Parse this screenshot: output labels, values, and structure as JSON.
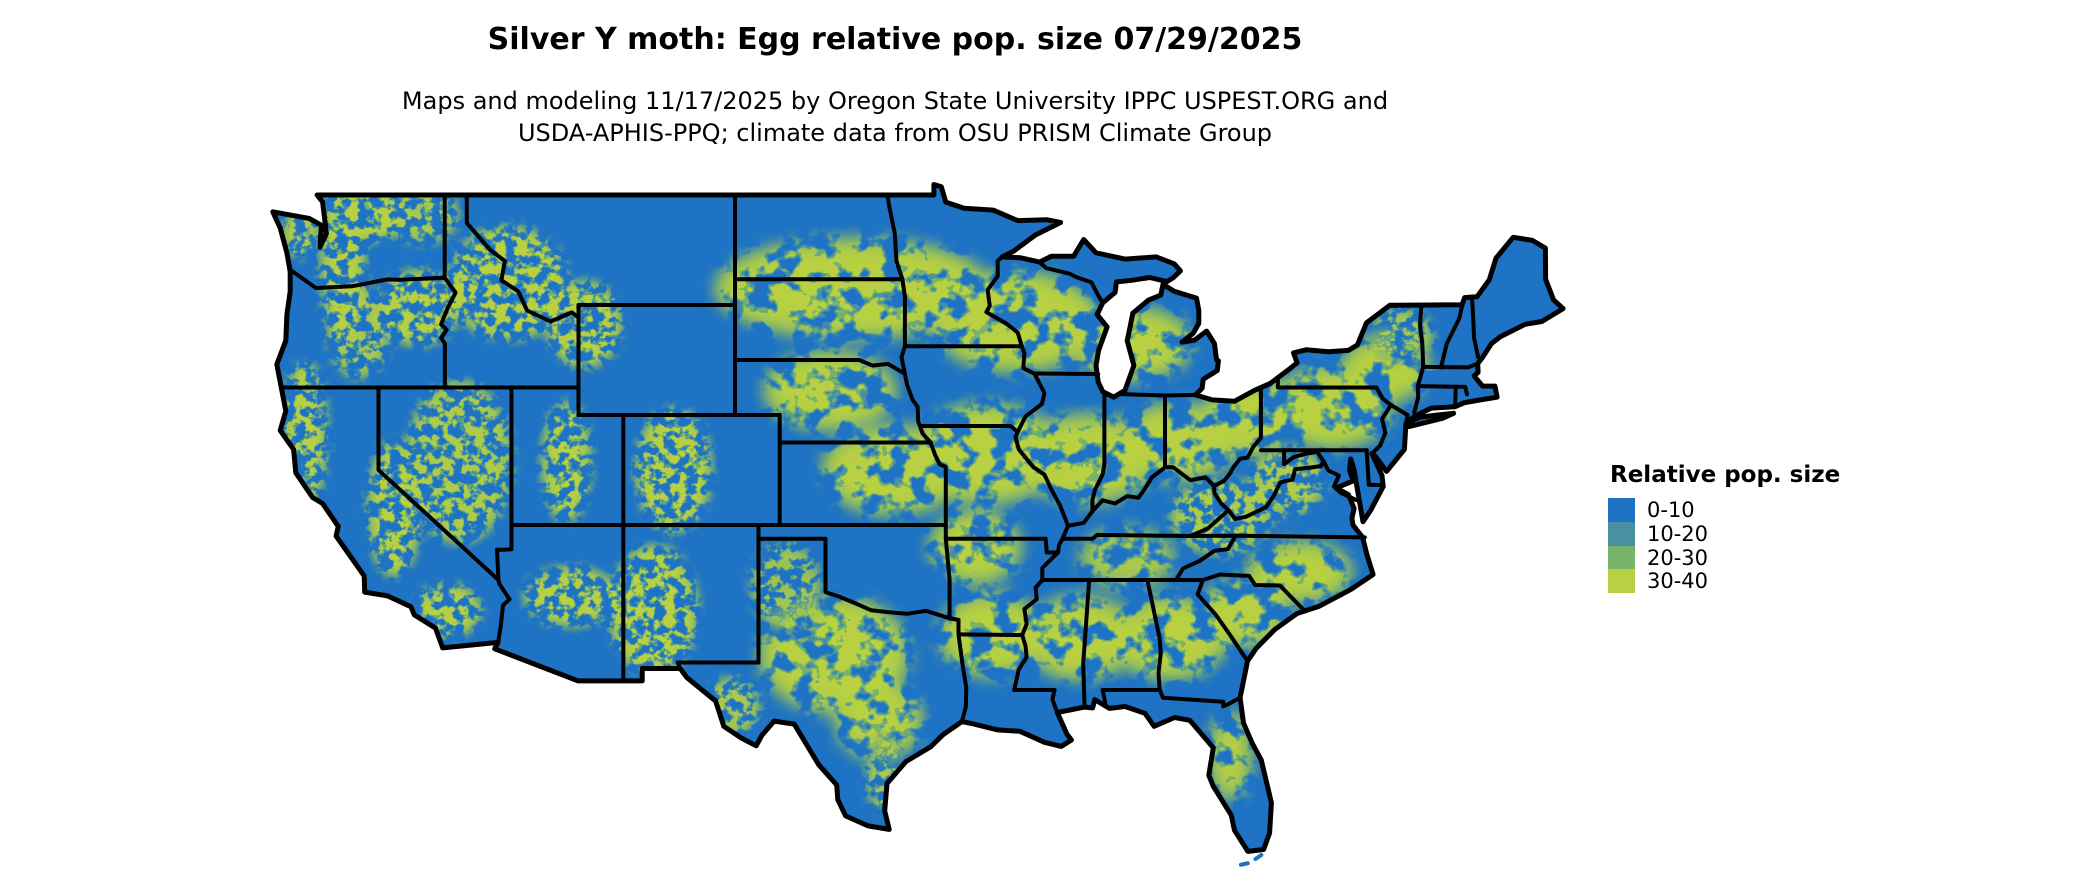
{
  "title": "Silver Y moth: Egg relative pop. size 07/29/2025",
  "subtitle_line1": "Maps and modeling 11/17/2025 by Oregon State University IPPC USPEST.ORG and",
  "subtitle_line2": "USDA-APHIS-PPQ; climate data from OSU PRISM Climate Group",
  "legend": {
    "title": "Relative pop. size",
    "items": [
      {
        "label": "0-10",
        "color": "#1e73c5"
      },
      {
        "label": "10-20",
        "color": "#4a90a4"
      },
      {
        "label": "20-30",
        "color": "#78b36a"
      },
      {
        "label": "30-40",
        "color": "#b8d043"
      }
    ]
  },
  "map": {
    "kind": "Contiguous United States raster map with state borders",
    "land_color": "#1e73c5",
    "border_color": "#000000",
    "background_color": "#ffffff"
  }
}
